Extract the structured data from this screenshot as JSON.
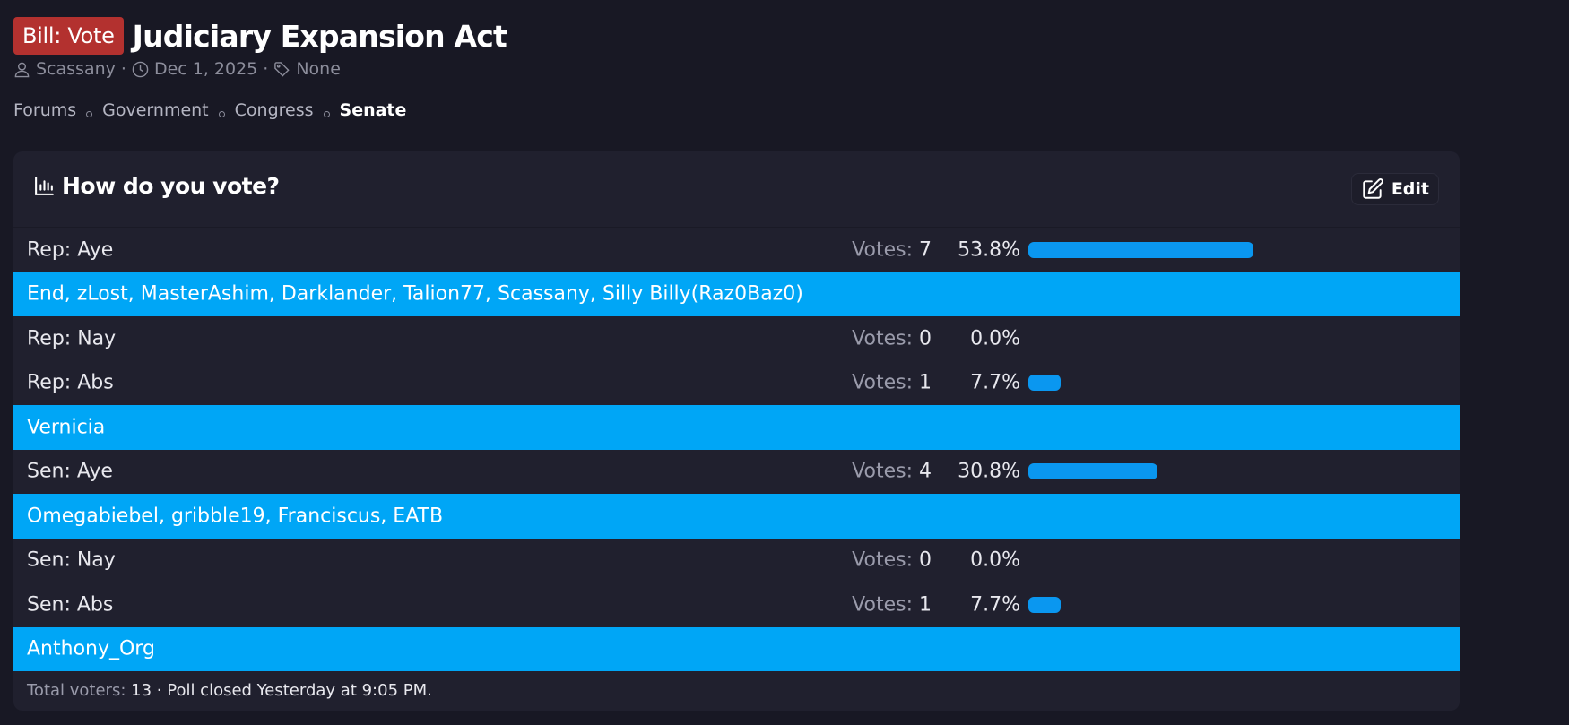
{
  "thread": {
    "prefix": "Bill: Vote",
    "title": "Judiciary Expansion Act",
    "author": "Scassany",
    "date": "Dec 1, 2025",
    "tags": "None",
    "separator": "·"
  },
  "breadcrumb": {
    "items": [
      "Forums",
      "Government",
      "Congress"
    ],
    "current": "Senate"
  },
  "poll": {
    "title": "How do you vote?",
    "edit_label": "Edit",
    "votes_label": "Votes:",
    "options": [
      {
        "label": "Rep: Aye",
        "votes": "7",
        "percent": "53.8%",
        "fraction": 0.538,
        "voters": "End, zLost, MasterAshim, Darklander, Talion77, Scassany, Silly Billy(Raz0Baz0)"
      },
      {
        "label": "Rep: Nay",
        "votes": "0",
        "percent": "0.0%",
        "fraction": 0.0,
        "voters": ""
      },
      {
        "label": "Rep: Abs",
        "votes": "1",
        "percent": "7.7%",
        "fraction": 0.077,
        "voters": "Vernicia"
      },
      {
        "label": "Sen: Aye",
        "votes": "4",
        "percent": "30.8%",
        "fraction": 0.308,
        "voters": "Omegabiebel, gribble19, Franciscus, EATB"
      },
      {
        "label": "Sen: Nay",
        "votes": "0",
        "percent": "0.0%",
        "fraction": 0.0,
        "voters": ""
      },
      {
        "label": "Sen: Abs",
        "votes": "1",
        "percent": "7.7%",
        "fraction": 0.077,
        "voters": "Anthony_Org"
      }
    ],
    "footer": {
      "total_label": "Total voters:",
      "total_value": "13",
      "closed_text": "· Poll closed Yesterday at 9:05 PM."
    }
  },
  "colors": {
    "background": "#181824",
    "panel": "#20202e",
    "prefix_badge": "#b3312f",
    "voters_row": "#00a6f6",
    "vote_bar": "#0a97f0"
  },
  "icons": {
    "author": "user-icon",
    "date": "clock-icon",
    "tags": "tag-icon",
    "poll": "bar-chart-icon",
    "edit": "edit-icon"
  }
}
